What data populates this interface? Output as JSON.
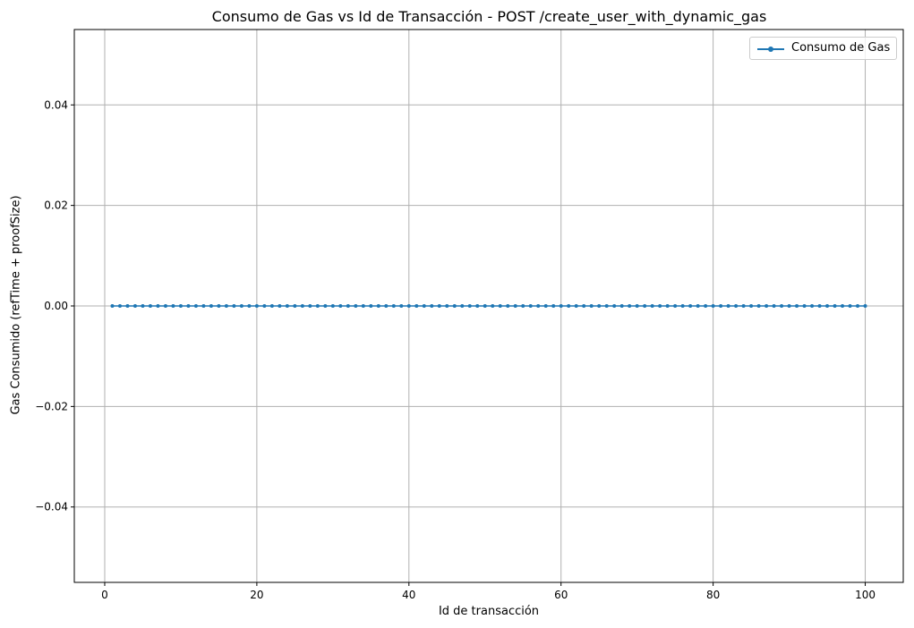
{
  "chart_data": {
    "type": "line",
    "title": "Consumo de Gas vs Id de Transacción - POST /create_user_with_dynamic_gas",
    "xlabel": "Id de transacción",
    "ylabel": "Gas Consumido (refTime + proofSize)",
    "xlim": [
      -4,
      105
    ],
    "ylim": [
      -0.055,
      0.055
    ],
    "x_ticks": [
      0,
      20,
      40,
      60,
      80,
      100
    ],
    "x_tick_labels": [
      "0",
      "20",
      "40",
      "60",
      "80",
      "100"
    ],
    "y_ticks": [
      -0.04,
      -0.02,
      0.0,
      0.02,
      0.04
    ],
    "y_tick_labels": [
      "−0.04",
      "−0.02",
      "0.00",
      "0.02",
      "0.04"
    ],
    "grid": true,
    "legend_position": "top-right",
    "series": [
      {
        "name": "Consumo de Gas",
        "color": "#1f77b4",
        "marker": "circle",
        "x": [
          1,
          2,
          3,
          4,
          5,
          6,
          7,
          8,
          9,
          10,
          11,
          12,
          13,
          14,
          15,
          16,
          17,
          18,
          19,
          20,
          21,
          22,
          23,
          24,
          25,
          26,
          27,
          28,
          29,
          30,
          31,
          32,
          33,
          34,
          35,
          36,
          37,
          38,
          39,
          40,
          41,
          42,
          43,
          44,
          45,
          46,
          47,
          48,
          49,
          50,
          51,
          52,
          53,
          54,
          55,
          56,
          57,
          58,
          59,
          60,
          61,
          62,
          63,
          64,
          65,
          66,
          67,
          68,
          69,
          70,
          71,
          72,
          73,
          74,
          75,
          76,
          77,
          78,
          79,
          80,
          81,
          82,
          83,
          84,
          85,
          86,
          87,
          88,
          89,
          90,
          91,
          92,
          93,
          94,
          95,
          96,
          97,
          98,
          99,
          100
        ],
        "values": [
          0,
          0,
          0,
          0,
          0,
          0,
          0,
          0,
          0,
          0,
          0,
          0,
          0,
          0,
          0,
          0,
          0,
          0,
          0,
          0,
          0,
          0,
          0,
          0,
          0,
          0,
          0,
          0,
          0,
          0,
          0,
          0,
          0,
          0,
          0,
          0,
          0,
          0,
          0,
          0,
          0,
          0,
          0,
          0,
          0,
          0,
          0,
          0,
          0,
          0,
          0,
          0,
          0,
          0,
          0,
          0,
          0,
          0,
          0,
          0,
          0,
          0,
          0,
          0,
          0,
          0,
          0,
          0,
          0,
          0,
          0,
          0,
          0,
          0,
          0,
          0,
          0,
          0,
          0,
          0,
          0,
          0,
          0,
          0,
          0,
          0,
          0,
          0,
          0,
          0,
          0,
          0,
          0,
          0,
          0,
          0,
          0,
          0,
          0,
          0
        ]
      }
    ]
  }
}
